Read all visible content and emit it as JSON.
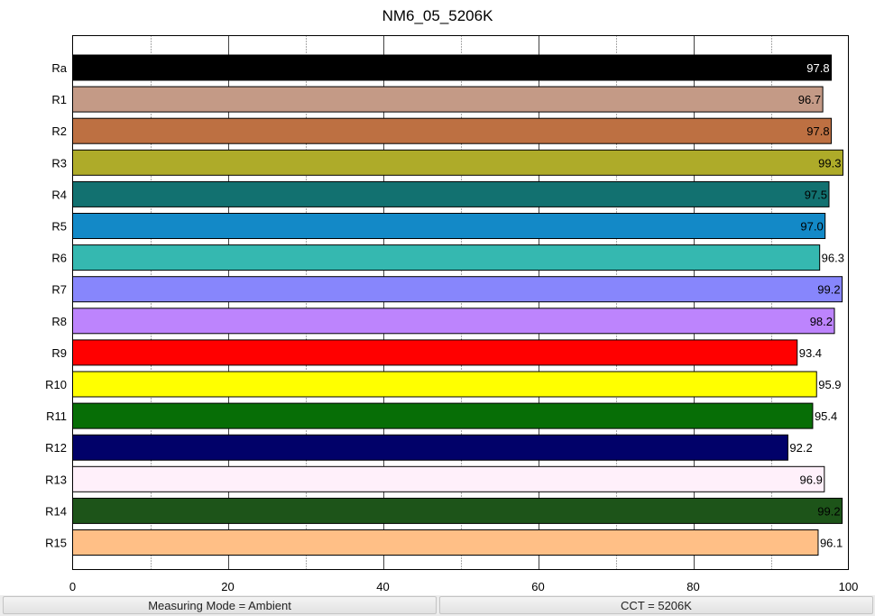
{
  "chart_data": {
    "type": "bar",
    "orientation": "horizontal",
    "title": "NM6_05_5206K",
    "xlabel": "",
    "ylabel": "",
    "xlim": [
      0,
      100
    ],
    "x_ticks": [
      0,
      20,
      40,
      60,
      80,
      100
    ],
    "grid": "vertical dotted every 10",
    "categories": [
      "Ra",
      "R1",
      "R2",
      "R3",
      "R4",
      "R5",
      "R6",
      "R7",
      "R8",
      "R9",
      "R10",
      "R11",
      "R12",
      "R13",
      "R14",
      "R15"
    ],
    "values": [
      97.8,
      96.7,
      97.8,
      99.3,
      97.5,
      97.0,
      96.3,
      99.2,
      98.2,
      93.4,
      95.9,
      95.4,
      92.2,
      96.9,
      99.2,
      96.1
    ],
    "value_labels": [
      "97.8",
      "96.7",
      "97.8",
      "99.3",
      "97.5",
      "97.0",
      "96.3",
      "99.2",
      "98.2",
      "93.4",
      "95.9",
      "95.4",
      "92.2",
      "96.9",
      "99.2",
      "96.1"
    ],
    "bar_colors": [
      "#000000",
      "#c49a86",
      "#bd7042",
      "#aeab29",
      "#127170",
      "#1389c7",
      "#35b8b0",
      "#8786fc",
      "#bd84fd",
      "#ff0000",
      "#ffff00",
      "#076e06",
      "#010169",
      "#fff0fa",
      "#1d5419",
      "#ffbf86"
    ],
    "label_colors": [
      "#ffffff",
      "#000000",
      "#000000",
      "#000000",
      "#000000",
      "#000000",
      "#000000",
      "#000000",
      "#000000",
      "#000000",
      "#000000",
      "#000000",
      "#000000",
      "#000000",
      "#000000",
      "#000000"
    ]
  },
  "status": {
    "measuring_mode": "Measuring Mode = Ambient",
    "cct": "CCT = 5206K"
  }
}
